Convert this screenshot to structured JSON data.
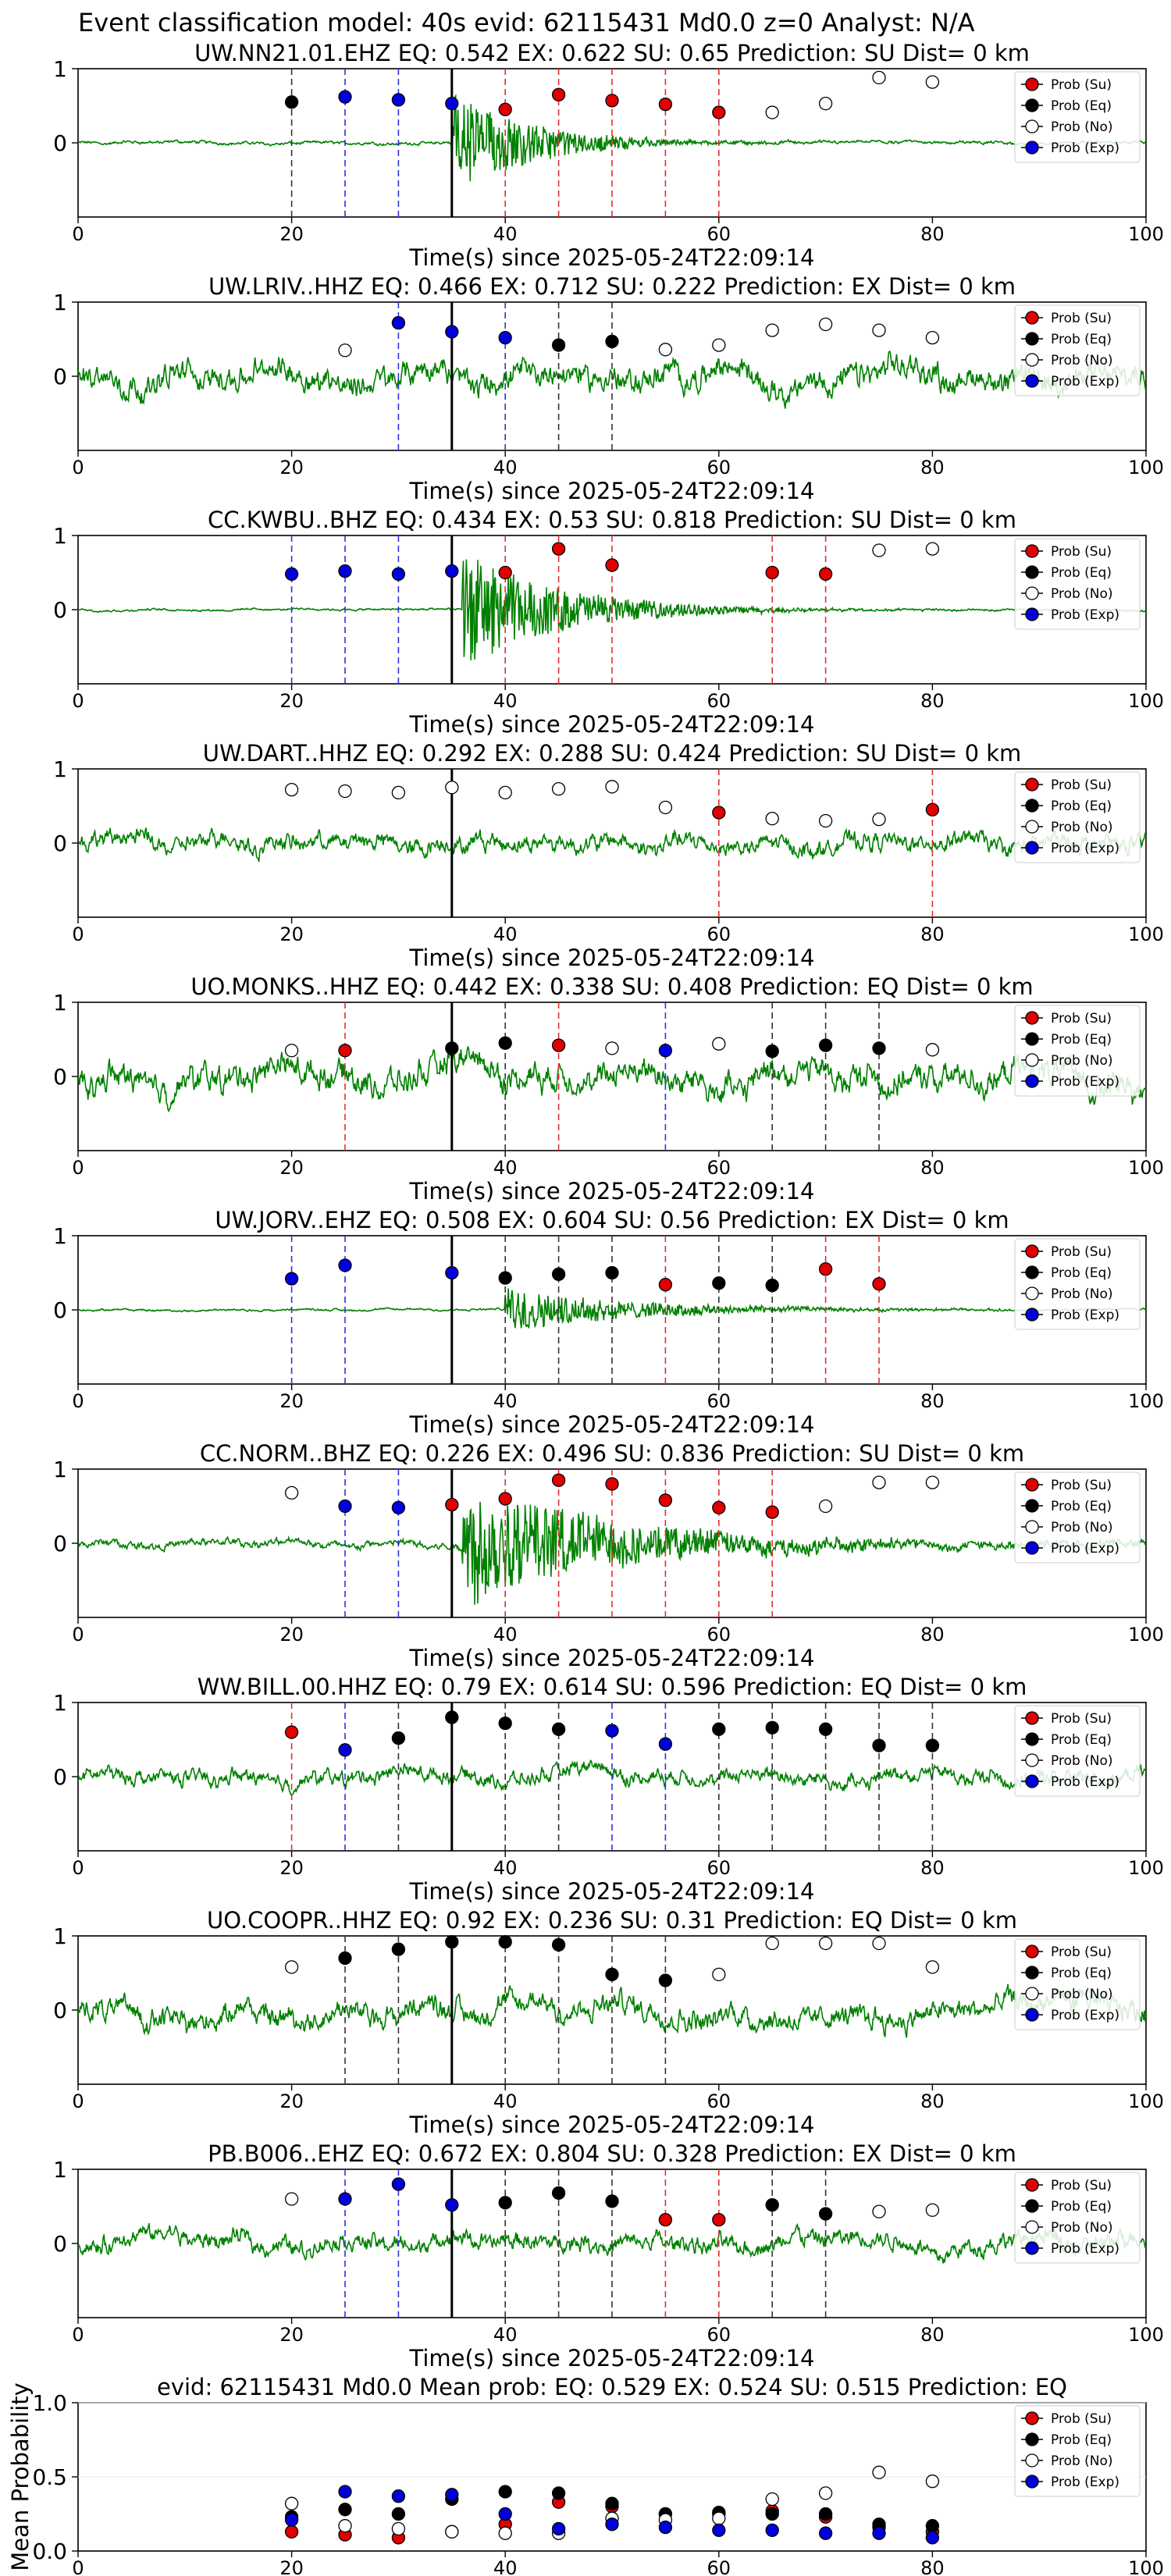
{
  "figure_title": "Event classification model: 40s evid: 62115431 Md0.0 z=0 Analyst: N/A",
  "legend": [
    "Prob (Su)",
    "Prob (Eq)",
    "Prob (No)",
    "Prob (Exp)"
  ],
  "colors": {
    "su": "#e00000",
    "eq": "#000000",
    "no": "#ffffff",
    "exp": "#0000dd",
    "trace": "#008000",
    "line_su": "#e03030",
    "line_eq": "#333333",
    "line_exp": "#3030e0"
  },
  "x_axis_label": "Time(s) since 2025-05-24T22:09:14",
  "x_ticks": [
    "0",
    "20",
    "40",
    "60",
    "80",
    "100"
  ],
  "arrival_time": 35,
  "chart_data": [
    {
      "type": "scatter",
      "title": "UW.NN21.01.EHZ   EQ: 0.542  EX: 0.622  SU: 0.65   Prediction: SU    Dist= 0 km",
      "xlabel": "Time(s) since 2025-05-24T22:09:14",
      "xlim": [
        0,
        100
      ],
      "ylim": [
        -1,
        1
      ],
      "y_ticks": [
        "1",
        "0"
      ],
      "waveform": {
        "amplitude": 0.06,
        "burst_start": 35,
        "burst_amp": 0.75,
        "burst_decay": 7
      },
      "points": [
        {
          "x": 20,
          "y": 0.55,
          "class": "eq"
        },
        {
          "x": 25,
          "y": 0.62,
          "class": "exp"
        },
        {
          "x": 30,
          "y": 0.58,
          "class": "exp"
        },
        {
          "x": 35,
          "y": 0.53,
          "class": "exp"
        },
        {
          "x": 40,
          "y": 0.45,
          "class": "su"
        },
        {
          "x": 45,
          "y": 0.65,
          "class": "su"
        },
        {
          "x": 50,
          "y": 0.57,
          "class": "su"
        },
        {
          "x": 55,
          "y": 0.52,
          "class": "su"
        },
        {
          "x": 60,
          "y": 0.41,
          "class": "su"
        },
        {
          "x": 65,
          "y": 0.41,
          "class": "no"
        },
        {
          "x": 70,
          "y": 0.53,
          "class": "no"
        },
        {
          "x": 75,
          "y": 0.88,
          "class": "no"
        },
        {
          "x": 80,
          "y": 0.82,
          "class": "no"
        }
      ]
    },
    {
      "type": "scatter",
      "title": "UW.LRIV..HHZ   EQ: 0.466  EX: 0.712  SU: 0.222   Prediction: EX    Dist= 0 km",
      "xlabel": "Time(s) since 2025-05-24T22:09:14",
      "xlim": [
        0,
        100
      ],
      "ylim": [
        -1,
        1
      ],
      "y_ticks": [
        "1",
        "0"
      ],
      "waveform": {
        "amplitude": 0.5,
        "burst_start": 35,
        "burst_amp": 0.0,
        "burst_decay": 7
      },
      "points": [
        {
          "x": 25,
          "y": 0.35,
          "class": "no"
        },
        {
          "x": 30,
          "y": 0.72,
          "class": "exp"
        },
        {
          "x": 35,
          "y": 0.6,
          "class": "exp"
        },
        {
          "x": 40,
          "y": 0.52,
          "class": "exp"
        },
        {
          "x": 45,
          "y": 0.42,
          "class": "eq"
        },
        {
          "x": 50,
          "y": 0.47,
          "class": "eq"
        },
        {
          "x": 55,
          "y": 0.36,
          "class": "no"
        },
        {
          "x": 60,
          "y": 0.42,
          "class": "no"
        },
        {
          "x": 65,
          "y": 0.62,
          "class": "no"
        },
        {
          "x": 70,
          "y": 0.7,
          "class": "no"
        },
        {
          "x": 75,
          "y": 0.62,
          "class": "no"
        },
        {
          "x": 80,
          "y": 0.52,
          "class": "no"
        }
      ]
    },
    {
      "type": "scatter",
      "title": "CC.KWBU..BHZ   EQ: 0.434  EX: 0.53  SU: 0.818   Prediction: SU    Dist= 0 km",
      "xlabel": "Time(s) since 2025-05-24T22:09:14",
      "xlim": [
        0,
        100
      ],
      "ylim": [
        -1,
        1
      ],
      "y_ticks": [
        "1",
        "0"
      ],
      "waveform": {
        "amplitude": 0.04,
        "burst_start": 36,
        "burst_amp": 0.8,
        "burst_decay": 9
      },
      "points": [
        {
          "x": 20,
          "y": 0.48,
          "class": "exp"
        },
        {
          "x": 25,
          "y": 0.52,
          "class": "exp"
        },
        {
          "x": 30,
          "y": 0.48,
          "class": "exp"
        },
        {
          "x": 35,
          "y": 0.52,
          "class": "exp"
        },
        {
          "x": 40,
          "y": 0.5,
          "class": "su"
        },
        {
          "x": 45,
          "y": 0.82,
          "class": "su"
        },
        {
          "x": 50,
          "y": 0.6,
          "class": "su"
        },
        {
          "x": 65,
          "y": 0.5,
          "class": "su"
        },
        {
          "x": 70,
          "y": 0.48,
          "class": "su"
        },
        {
          "x": 75,
          "y": 0.8,
          "class": "no"
        },
        {
          "x": 80,
          "y": 0.82,
          "class": "no"
        }
      ]
    },
    {
      "type": "scatter",
      "title": "UW.DART..HHZ   EQ: 0.292  EX: 0.288  SU: 0.424   Prediction: SU    Dist= 0 km",
      "xlabel": "Time(s) since 2025-05-24T22:09:14",
      "xlim": [
        0,
        100
      ],
      "ylim": [
        -1,
        1
      ],
      "y_ticks": [
        "1",
        "0"
      ],
      "waveform": {
        "amplitude": 0.35,
        "burst_start": 35,
        "burst_amp": 0.0,
        "burst_decay": 7
      },
      "points": [
        {
          "x": 20,
          "y": 0.72,
          "class": "no"
        },
        {
          "x": 25,
          "y": 0.7,
          "class": "no"
        },
        {
          "x": 30,
          "y": 0.68,
          "class": "no"
        },
        {
          "x": 35,
          "y": 0.75,
          "class": "no"
        },
        {
          "x": 40,
          "y": 0.68,
          "class": "no"
        },
        {
          "x": 45,
          "y": 0.73,
          "class": "no"
        },
        {
          "x": 50,
          "y": 0.76,
          "class": "no"
        },
        {
          "x": 55,
          "y": 0.48,
          "class": "no"
        },
        {
          "x": 60,
          "y": 0.41,
          "class": "su"
        },
        {
          "x": 65,
          "y": 0.33,
          "class": "no"
        },
        {
          "x": 70,
          "y": 0.3,
          "class": "no"
        },
        {
          "x": 75,
          "y": 0.32,
          "class": "no"
        },
        {
          "x": 80,
          "y": 0.45,
          "class": "su"
        }
      ]
    },
    {
      "type": "scatter",
      "title": "UO.MONKS..HHZ   EQ: 0.442  EX: 0.338  SU: 0.408   Prediction: EQ    Dist= 0 km",
      "xlabel": "Time(s) since 2025-05-24T22:09:14",
      "xlim": [
        0,
        100
      ],
      "ylim": [
        -1,
        1
      ],
      "y_ticks": [
        "1",
        "0"
      ],
      "waveform": {
        "amplitude": 0.55,
        "burst_start": 35,
        "burst_amp": 0.0,
        "burst_decay": 7
      },
      "points": [
        {
          "x": 20,
          "y": 0.35,
          "class": "no"
        },
        {
          "x": 25,
          "y": 0.35,
          "class": "su"
        },
        {
          "x": 35,
          "y": 0.38,
          "class": "eq"
        },
        {
          "x": 40,
          "y": 0.45,
          "class": "eq"
        },
        {
          "x": 45,
          "y": 0.42,
          "class": "su"
        },
        {
          "x": 50,
          "y": 0.38,
          "class": "no"
        },
        {
          "x": 55,
          "y": 0.35,
          "class": "exp"
        },
        {
          "x": 60,
          "y": 0.44,
          "class": "no"
        },
        {
          "x": 65,
          "y": 0.34,
          "class": "eq"
        },
        {
          "x": 70,
          "y": 0.42,
          "class": "eq"
        },
        {
          "x": 75,
          "y": 0.38,
          "class": "eq"
        },
        {
          "x": 80,
          "y": 0.36,
          "class": "no"
        }
      ]
    },
    {
      "type": "scatter",
      "title": "UW.JORV..EHZ   EQ: 0.508  EX: 0.604  SU: 0.56   Prediction: EX    Dist= 0 km",
      "xlabel": "Time(s) since 2025-05-24T22:09:14",
      "xlim": [
        0,
        100
      ],
      "ylim": [
        -1,
        1
      ],
      "y_ticks": [
        "1",
        "0"
      ],
      "waveform": {
        "amplitude": 0.04,
        "burst_start": 40,
        "burst_amp": 0.3,
        "burst_decay": 12
      },
      "points": [
        {
          "x": 20,
          "y": 0.42,
          "class": "exp"
        },
        {
          "x": 25,
          "y": 0.6,
          "class": "exp"
        },
        {
          "x": 35,
          "y": 0.5,
          "class": "exp"
        },
        {
          "x": 40,
          "y": 0.43,
          "class": "eq"
        },
        {
          "x": 45,
          "y": 0.48,
          "class": "eq"
        },
        {
          "x": 50,
          "y": 0.5,
          "class": "eq"
        },
        {
          "x": 55,
          "y": 0.34,
          "class": "su"
        },
        {
          "x": 60,
          "y": 0.36,
          "class": "eq"
        },
        {
          "x": 65,
          "y": 0.33,
          "class": "eq"
        },
        {
          "x": 70,
          "y": 0.55,
          "class": "su"
        },
        {
          "x": 75,
          "y": 0.35,
          "class": "su"
        }
      ]
    },
    {
      "type": "scatter",
      "title": "CC.NORM..BHZ   EQ: 0.226  EX: 0.496  SU: 0.836   Prediction: SU    Dist= 0 km",
      "xlabel": "Time(s) since 2025-05-24T22:09:14",
      "xlim": [
        0,
        100
      ],
      "ylim": [
        -1,
        1
      ],
      "y_ticks": [
        "1",
        "0"
      ],
      "waveform": {
        "amplitude": 0.15,
        "burst_start": 36,
        "burst_amp": 0.85,
        "burst_decay": 14
      },
      "points": [
        {
          "x": 20,
          "y": 0.68,
          "class": "no"
        },
        {
          "x": 25,
          "y": 0.5,
          "class": "exp"
        },
        {
          "x": 30,
          "y": 0.48,
          "class": "exp"
        },
        {
          "x": 35,
          "y": 0.52,
          "class": "su"
        },
        {
          "x": 40,
          "y": 0.6,
          "class": "su"
        },
        {
          "x": 45,
          "y": 0.85,
          "class": "su"
        },
        {
          "x": 50,
          "y": 0.8,
          "class": "su"
        },
        {
          "x": 55,
          "y": 0.58,
          "class": "su"
        },
        {
          "x": 60,
          "y": 0.48,
          "class": "su"
        },
        {
          "x": 65,
          "y": 0.42,
          "class": "su"
        },
        {
          "x": 70,
          "y": 0.5,
          "class": "no"
        },
        {
          "x": 75,
          "y": 0.82,
          "class": "no"
        },
        {
          "x": 80,
          "y": 0.82,
          "class": "no"
        }
      ]
    },
    {
      "type": "scatter",
      "title": "WW.BILL.00.HHZ   EQ: 0.79  EX: 0.614  SU: 0.596   Prediction: EQ    Dist= 0 km",
      "xlabel": "Time(s) since 2025-05-24T22:09:14",
      "xlim": [
        0,
        100
      ],
      "ylim": [
        -1,
        1
      ],
      "y_ticks": [
        "1",
        "0"
      ],
      "waveform": {
        "amplitude": 0.3,
        "burst_start": 35,
        "burst_amp": 0.0,
        "burst_decay": 7
      },
      "points": [
        {
          "x": 20,
          "y": 0.6,
          "class": "su"
        },
        {
          "x": 25,
          "y": 0.36,
          "class": "exp"
        },
        {
          "x": 30,
          "y": 0.52,
          "class": "eq"
        },
        {
          "x": 35,
          "y": 0.8,
          "class": "eq"
        },
        {
          "x": 40,
          "y": 0.72,
          "class": "eq"
        },
        {
          "x": 45,
          "y": 0.64,
          "class": "eq"
        },
        {
          "x": 50,
          "y": 0.62,
          "class": "exp"
        },
        {
          "x": 55,
          "y": 0.44,
          "class": "exp"
        },
        {
          "x": 60,
          "y": 0.64,
          "class": "eq"
        },
        {
          "x": 65,
          "y": 0.66,
          "class": "eq"
        },
        {
          "x": 70,
          "y": 0.64,
          "class": "eq"
        },
        {
          "x": 75,
          "y": 0.42,
          "class": "eq"
        },
        {
          "x": 80,
          "y": 0.42,
          "class": "eq"
        }
      ]
    },
    {
      "type": "scatter",
      "title": "UO.COOPR..HHZ   EQ: 0.92  EX: 0.236  SU: 0.31   Prediction: EQ    Dist= 0 km",
      "xlabel": "Time(s) since 2025-05-24T22:09:14",
      "xlim": [
        0,
        100
      ],
      "ylim": [
        -1,
        1
      ],
      "y_ticks": [
        "1",
        "0"
      ],
      "waveform": {
        "amplitude": 0.45,
        "burst_start": 35,
        "burst_amp": 0.0,
        "burst_decay": 7
      },
      "points": [
        {
          "x": 20,
          "y": 0.58,
          "class": "no"
        },
        {
          "x": 25,
          "y": 0.7,
          "class": "eq"
        },
        {
          "x": 30,
          "y": 0.82,
          "class": "eq"
        },
        {
          "x": 35,
          "y": 0.92,
          "class": "eq"
        },
        {
          "x": 40,
          "y": 0.92,
          "class": "eq"
        },
        {
          "x": 45,
          "y": 0.88,
          "class": "eq"
        },
        {
          "x": 50,
          "y": 0.48,
          "class": "eq"
        },
        {
          "x": 55,
          "y": 0.4,
          "class": "eq"
        },
        {
          "x": 60,
          "y": 0.48,
          "class": "no"
        },
        {
          "x": 65,
          "y": 0.9,
          "class": "no"
        },
        {
          "x": 70,
          "y": 0.9,
          "class": "no"
        },
        {
          "x": 75,
          "y": 0.9,
          "class": "no"
        },
        {
          "x": 80,
          "y": 0.58,
          "class": "no"
        }
      ]
    },
    {
      "type": "scatter",
      "title": "PB.B006..EHZ   EQ: 0.672  EX: 0.804  SU: 0.328   Prediction: EX    Dist= 0 km",
      "xlabel": "Time(s) since 2025-05-24T22:09:14",
      "xlim": [
        0,
        100
      ],
      "ylim": [
        -1,
        1
      ],
      "y_ticks": [
        "1",
        "0"
      ],
      "waveform": {
        "amplitude": 0.35,
        "burst_start": 35,
        "burst_amp": 0.0,
        "burst_decay": 7
      },
      "points": [
        {
          "x": 20,
          "y": 0.6,
          "class": "no"
        },
        {
          "x": 25,
          "y": 0.6,
          "class": "exp"
        },
        {
          "x": 30,
          "y": 0.8,
          "class": "exp"
        },
        {
          "x": 35,
          "y": 0.52,
          "class": "exp"
        },
        {
          "x": 40,
          "y": 0.55,
          "class": "eq"
        },
        {
          "x": 45,
          "y": 0.68,
          "class": "eq"
        },
        {
          "x": 50,
          "y": 0.57,
          "class": "eq"
        },
        {
          "x": 55,
          "y": 0.32,
          "class": "su"
        },
        {
          "x": 60,
          "y": 0.32,
          "class": "su"
        },
        {
          "x": 65,
          "y": 0.52,
          "class": "eq"
        },
        {
          "x": 70,
          "y": 0.4,
          "class": "eq"
        },
        {
          "x": 75,
          "y": 0.43,
          "class": "no"
        },
        {
          "x": 80,
          "y": 0.45,
          "class": "no"
        }
      ]
    },
    {
      "type": "scatter",
      "title": "evid: 62115431  Md0.0   Mean prob:   EQ: 0.529  EX: 0.524  SU: 0.515   Prediction: EQ",
      "ylabel": "Mean Probability",
      "xlim": [
        0,
        100
      ],
      "ylim": [
        0,
        1
      ],
      "y_ticks": [
        "1.0",
        "0.5",
        "0.0"
      ],
      "series": [
        {
          "name": "Prob (Su)",
          "class": "su",
          "x": [
            20,
            25,
            30,
            35,
            40,
            45,
            50,
            55,
            60,
            65,
            70,
            75,
            80
          ],
          "y": [
            0.13,
            0.11,
            0.09,
            0.13,
            0.18,
            0.33,
            0.3,
            0.25,
            0.25,
            0.27,
            0.23,
            0.16,
            0.13
          ]
        },
        {
          "name": "Prob (Eq)",
          "class": "eq",
          "x": [
            20,
            25,
            30,
            35,
            40,
            45,
            50,
            55,
            60,
            65,
            70,
            75,
            80
          ],
          "y": [
            0.23,
            0.28,
            0.25,
            0.35,
            0.4,
            0.39,
            0.32,
            0.25,
            0.26,
            0.25,
            0.25,
            0.18,
            0.17
          ]
        },
        {
          "name": "Prob (No)",
          "class": "no",
          "x": [
            20,
            25,
            30,
            35,
            40,
            45,
            50,
            55,
            60,
            65,
            70,
            75,
            80
          ],
          "y": [
            0.32,
            0.17,
            0.15,
            0.13,
            0.12,
            0.12,
            0.22,
            0.21,
            0.22,
            0.35,
            0.39,
            0.53,
            0.47
          ]
        },
        {
          "name": "Prob (Exp)",
          "class": "exp",
          "x": [
            20,
            25,
            30,
            35,
            40,
            45,
            50,
            55,
            60,
            65,
            70,
            75,
            80
          ],
          "y": [
            0.21,
            0.4,
            0.37,
            0.38,
            0.25,
            0.15,
            0.18,
            0.16,
            0.14,
            0.14,
            0.12,
            0.12,
            0.09
          ]
        }
      ]
    }
  ]
}
